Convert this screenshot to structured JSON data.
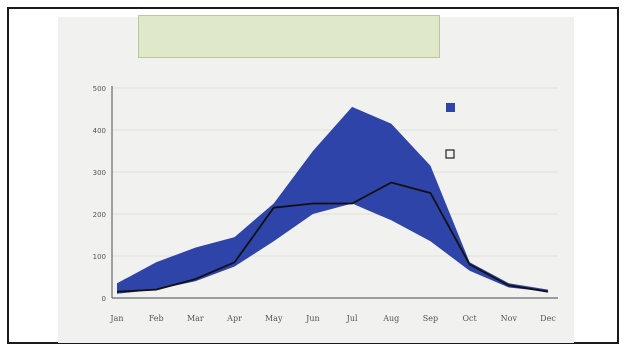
{
  "chart_data": {
    "type": "area",
    "title": [
      "",
      ""
    ],
    "xlabel": "",
    "ylabel": "",
    "categories": [
      "Jan",
      "Feb",
      "Mar",
      "Apr",
      "May",
      "Jun",
      "Jul",
      "Aug",
      "Sep",
      "Oct",
      "Nov",
      "Dec"
    ],
    "ylim": [
      0,
      500
    ],
    "yticks": [
      "0",
      "100",
      "200",
      "300",
      "400",
      "500"
    ],
    "series": [
      {
        "role": "band-upper",
        "values": [
          35,
          85,
          120,
          145,
          225,
          350,
          455,
          415,
          315,
          85,
          35,
          20
        ]
      },
      {
        "role": "band-lower",
        "values": [
          10,
          20,
          40,
          75,
          135,
          200,
          225,
          185,
          135,
          65,
          25,
          15
        ]
      },
      {
        "role": "line",
        "values": [
          15,
          20,
          45,
          85,
          215,
          225,
          225,
          275,
          250,
          80,
          30,
          15
        ]
      }
    ],
    "legend": {
      "placement": "right",
      "items": [
        "",
        ""
      ]
    },
    "colors": {
      "band": "#2f44a8",
      "line": "#111111"
    }
  }
}
